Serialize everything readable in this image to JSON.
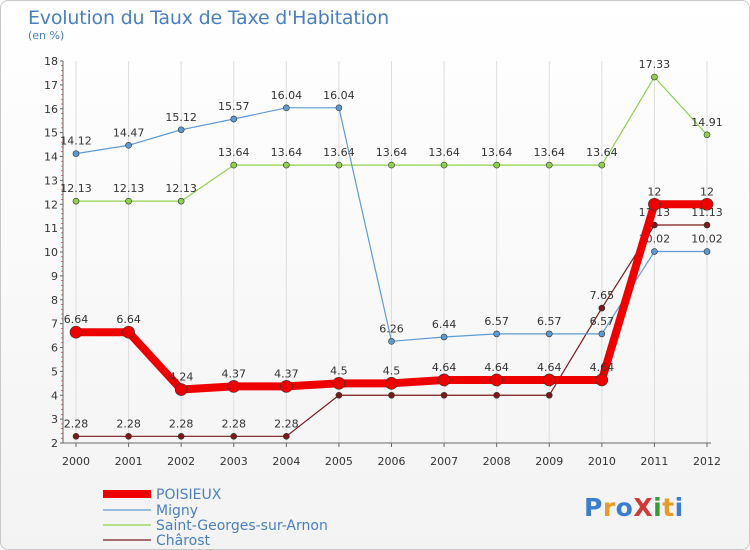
{
  "title": "Evolution du Taux de Taxe d'Habitation",
  "unit_label": "(en %)",
  "logo": {
    "text": "ProXiti",
    "colors": [
      "#3a7fcf",
      "#e89a2a",
      "#3a7fcf",
      "#d23a3a",
      "#3a9a3a",
      "#e89a2a",
      "#3a7fcf"
    ]
  },
  "chart_data": {
    "type": "line",
    "x": [
      2000,
      2001,
      2002,
      2003,
      2004,
      2005,
      2006,
      2007,
      2008,
      2009,
      2010,
      2011,
      2012
    ],
    "ylim": [
      2,
      18
    ],
    "yticks": [
      2,
      3,
      4,
      5,
      6,
      7,
      8,
      9,
      10,
      11,
      12,
      13,
      14,
      15,
      16,
      17,
      18
    ],
    "grid": "vertical",
    "legend_position": "bottom-left",
    "series": [
      {
        "name": "Chârost",
        "color": "#7a1a1a",
        "width": 1.2,
        "marker": 3,
        "values": [
          2.28,
          2.28,
          2.28,
          2.28,
          2.28,
          4,
          4,
          4,
          4,
          4,
          7.65,
          11.13,
          11.13
        ],
        "labels": [
          "2.28",
          "2.28",
          "2.28",
          "2.28",
          "2.28",
          "4",
          "4",
          "4",
          "4",
          "4",
          "7.65",
          "11.13",
          "11.13"
        ]
      },
      {
        "name": "Saint-Georges-sur-Arnon",
        "color": "#8fd14f",
        "width": 1.2,
        "marker": 3,
        "values": [
          12.13,
          12.13,
          12.13,
          13.64,
          13.64,
          13.64,
          13.64,
          13.64,
          13.64,
          13.64,
          13.64,
          17.33,
          14.91
        ],
        "labels": [
          "12.13",
          "12.13",
          "12.13",
          "13.64",
          "13.64",
          "13.64",
          "13.64",
          "13.64",
          "13.64",
          "13.64",
          "13.64",
          "17.33",
          "14.91"
        ]
      },
      {
        "name": "Migny",
        "color": "#5f9bd3",
        "width": 1.2,
        "marker": 3,
        "values": [
          14.12,
          14.47,
          15.12,
          15.57,
          16.04,
          16.04,
          6.26,
          6.44,
          6.57,
          6.57,
          6.57,
          10.02,
          10.02
        ],
        "labels": [
          "14.12",
          "14.47",
          "15.12",
          "15.57",
          "16.04",
          "16.04",
          "6.26",
          "6.44",
          "6.57",
          "6.57",
          "6.57",
          "10.02",
          "10.02"
        ]
      },
      {
        "name": "POISIEUX",
        "color": "#ee0000",
        "width": 8,
        "marker": 6,
        "values": [
          6.64,
          6.64,
          4.24,
          4.37,
          4.37,
          4.5,
          4.5,
          4.64,
          4.64,
          4.64,
          4.64,
          12,
          12
        ],
        "labels": [
          "6.64",
          "6.64",
          "4.24",
          "4.37",
          "4.37",
          "4.5",
          "4.5",
          "4.64",
          "4.64",
          "4.64",
          "4.64",
          "12",
          "12"
        ]
      }
    ],
    "legend": [
      "POISIEUX",
      "Migny",
      "Saint-Georges-sur-Arnon",
      "Chârost"
    ]
  }
}
